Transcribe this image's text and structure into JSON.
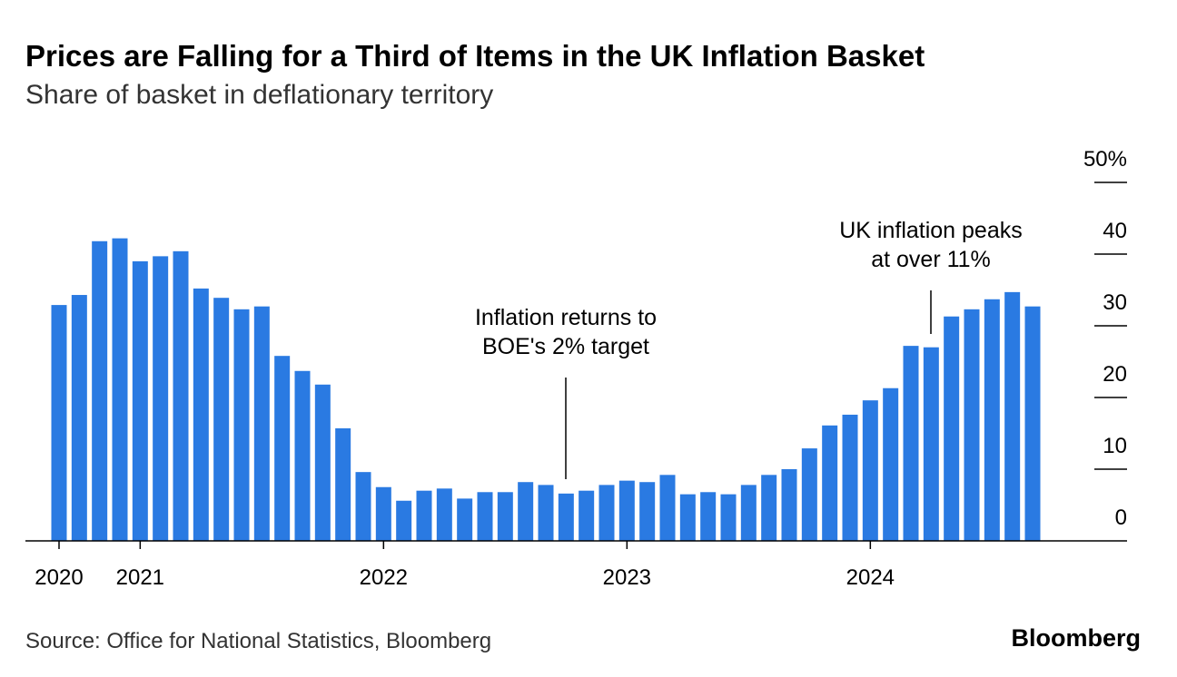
{
  "chart_data": {
    "type": "bar",
    "title": "Prices are Falling for a Third of Items in the UK Inflation Basket",
    "subtitle": "Share of basket in deflationary territory",
    "source": "Source: Office for National Statistics, Bloomberg",
    "brand": "Bloomberg",
    "categories": [
      "2020",
      null,
      null,
      null,
      "2021",
      null,
      null,
      null,
      null,
      null,
      null,
      null,
      null,
      null,
      null,
      null,
      "2022",
      null,
      null,
      null,
      null,
      null,
      null,
      null,
      null,
      null,
      null,
      null,
      "2023",
      null,
      null,
      null,
      null,
      null,
      null,
      null,
      null,
      null,
      null,
      null,
      "2024",
      null,
      null,
      null,
      null,
      null,
      null,
      null,
      null
    ],
    "values": [
      32.9,
      34.3,
      41.8,
      42.2,
      39.0,
      39.7,
      40.4,
      35.2,
      33.9,
      32.3,
      32.7,
      25.8,
      23.7,
      21.8,
      15.7,
      9.6,
      7.5,
      5.6,
      7.0,
      7.3,
      5.9,
      6.8,
      6.8,
      8.2,
      7.8,
      6.6,
      7.0,
      7.8,
      8.4,
      8.2,
      9.2,
      6.5,
      6.8,
      6.5,
      7.8,
      9.2,
      10.0,
      12.9,
      16.1,
      17.6,
      19.6,
      21.3,
      27.2,
      27.0,
      31.3,
      32.3,
      33.7,
      34.7,
      32.7
    ],
    "color": "#2a7ae2",
    "ylim": [
      0,
      50
    ],
    "yticks": [
      0,
      10,
      20,
      30,
      40,
      {
        "value": 50,
        "label": "50%"
      }
    ],
    "annotations": [
      {
        "text": [
          "Inflation returns to",
          "BOE's 2% target"
        ]
      },
      {
        "text": [
          "UK inflation peaks",
          "at over 11%"
        ]
      }
    ]
  }
}
